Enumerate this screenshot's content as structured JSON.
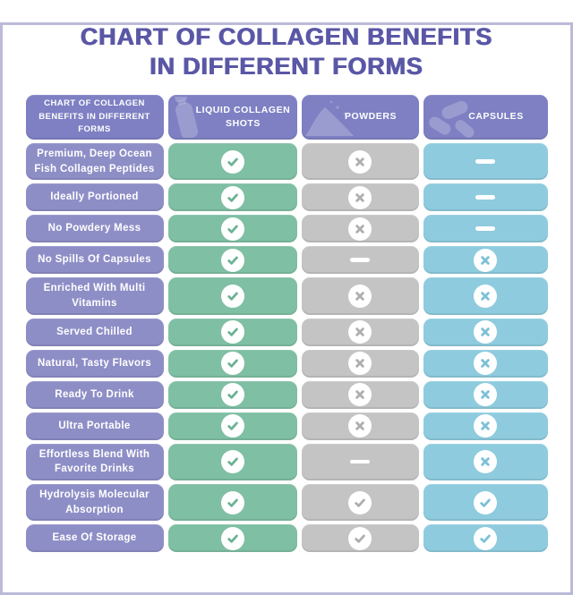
{
  "page": {
    "title_line1": "CHART OF COLLAGEN BENEFITS",
    "title_line2": "IN DIFFERENT FORMS"
  },
  "colors": {
    "frame_border": "#bcbad9",
    "title_text": "#5a57a6",
    "header_bg": "#7e80c3",
    "label_bg": "#8e8ec7",
    "liquid_bg": "#7fbfa4",
    "powders_bg": "#c4c4c4",
    "capsules_bg": "#8ecbde",
    "mark_circle": "#ffffff"
  },
  "table": {
    "corner_header": "CHART OF COLLAGEN BENEFITS IN DIFFERENT FORMS",
    "columns": [
      {
        "key": "liquid",
        "label": "LIQUID COLLAGEN SHOTS",
        "icon": "bottle-icon"
      },
      {
        "key": "powders",
        "label": "POWDERS",
        "icon": "powder-icon"
      },
      {
        "key": "capsules",
        "label": "CAPSULES",
        "icon": "capsules-icon"
      }
    ],
    "rows": [
      {
        "label": "Premium, Deep Ocean Fish Collagen Peptides",
        "liquid": "check",
        "powders": "cross",
        "capsules": "dash"
      },
      {
        "label": "Ideally Portioned",
        "liquid": "check",
        "powders": "cross",
        "capsules": "dash"
      },
      {
        "label": "No Powdery Mess",
        "liquid": "check",
        "powders": "cross",
        "capsules": "dash"
      },
      {
        "label": "No Spills Of Capsules",
        "liquid": "check",
        "powders": "dash",
        "capsules": "cross"
      },
      {
        "label": "Enriched With Multi Vitamins",
        "liquid": "check",
        "powders": "cross",
        "capsules": "cross"
      },
      {
        "label": "Served Chilled",
        "liquid": "check",
        "powders": "cross",
        "capsules": "cross"
      },
      {
        "label": "Natural, Tasty Flavors",
        "liquid": "check",
        "powders": "cross",
        "capsules": "cross"
      },
      {
        "label": "Ready To Drink",
        "liquid": "check",
        "powders": "cross",
        "capsules": "cross"
      },
      {
        "label": "Ultra Portable",
        "liquid": "check",
        "powders": "cross",
        "capsules": "cross"
      },
      {
        "label": "Effortless Blend With Favorite Drinks",
        "liquid": "check",
        "powders": "dash",
        "capsules": "cross"
      },
      {
        "label": "Hydrolysis Molecular Absorption",
        "liquid": "check",
        "powders": "check",
        "capsules": "check"
      },
      {
        "label": "Ease Of Storage",
        "liquid": "check",
        "powders": "check",
        "capsules": "check"
      }
    ]
  },
  "chart_data": {
    "type": "table",
    "title": "CHART OF COLLAGEN BENEFITS IN DIFFERENT FORMS",
    "columns": [
      "Liquid Collagen Shots",
      "Powders",
      "Capsules"
    ],
    "row_labels": [
      "Premium, Deep Ocean Fish Collagen Peptides",
      "Ideally Portioned",
      "No Powdery Mess",
      "No Spills Of Capsules",
      "Enriched With Multi Vitamins",
      "Served Chilled",
      "Natural, Tasty Flavors",
      "Ready To Drink",
      "Ultra Portable",
      "Effortless Blend With Favorite Drinks",
      "Hydrolysis Molecular Absorption",
      "Ease Of Storage"
    ],
    "values": [
      [
        "check",
        "cross",
        "dash"
      ],
      [
        "check",
        "cross",
        "dash"
      ],
      [
        "check",
        "cross",
        "dash"
      ],
      [
        "check",
        "dash",
        "cross"
      ],
      [
        "check",
        "cross",
        "cross"
      ],
      [
        "check",
        "cross",
        "cross"
      ],
      [
        "check",
        "cross",
        "cross"
      ],
      [
        "check",
        "cross",
        "cross"
      ],
      [
        "check",
        "cross",
        "cross"
      ],
      [
        "check",
        "dash",
        "cross"
      ],
      [
        "check",
        "check",
        "check"
      ],
      [
        "check",
        "check",
        "check"
      ]
    ],
    "value_legend": {
      "check": "benefit present",
      "cross": "benefit absent",
      "dash": "not applicable"
    }
  }
}
